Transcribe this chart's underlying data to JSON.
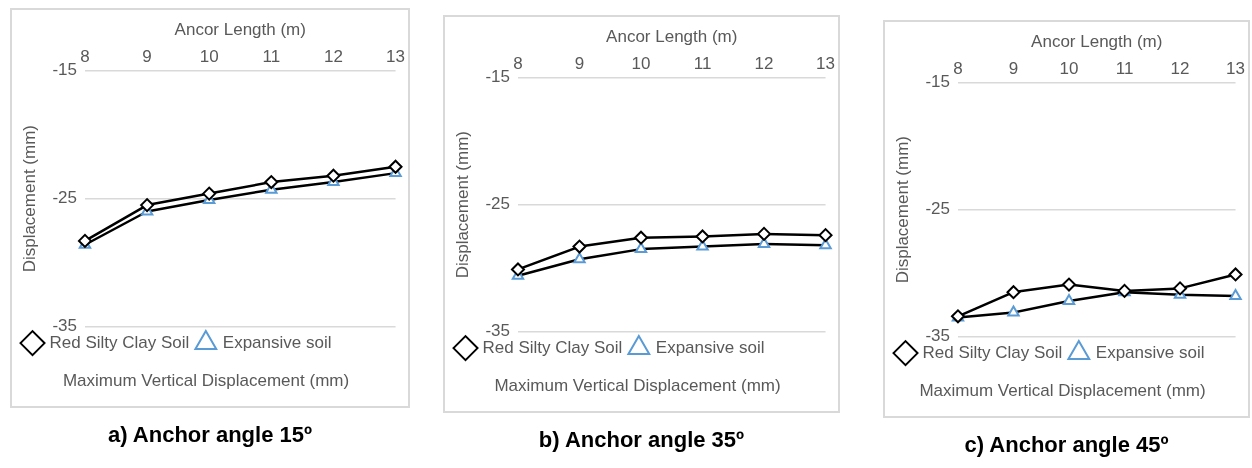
{
  "chart_data": [
    {
      "type": "line",
      "title": "Maximum Vertical Displacement (mm)",
      "xlabel": "Ancor Length (m)",
      "ylabel": "Displacement (mm)",
      "categories": [
        "8",
        "9",
        "10",
        "11",
        "12",
        "13"
      ],
      "ylim": [
        -35,
        -15
      ],
      "yticks": [
        -15,
        -25,
        -35
      ],
      "grid": "y",
      "legend": "bottom",
      "annotations": [
        "a) Anchor angle 15º"
      ],
      "series": [
        {
          "name": "Expansive soil",
          "color": "#5b9bd5",
          "marker": "triangle",
          "values": [
            -28.6,
            -26.0,
            -25.1,
            -24.3,
            -23.7,
            -23.0
          ]
        },
        {
          "name": "Red Silty Clay Soil",
          "color": "#000000",
          "marker": "diamond",
          "values": [
            -28.3,
            -25.5,
            -24.6,
            -23.7,
            -23.2,
            -22.5
          ]
        }
      ]
    },
    {
      "type": "line",
      "title": "Maximum Vertical Displacement (mm)",
      "xlabel": "Ancor Length (m)",
      "ylabel": "Displacement (mm)",
      "categories": [
        "8",
        "9",
        "10",
        "11",
        "12",
        "13"
      ],
      "ylim": [
        -35,
        -15
      ],
      "yticks": [
        -15,
        -25,
        -35
      ],
      "grid": "y",
      "legend": "bottom",
      "annotations": [
        "b) Anchor angle 35º"
      ],
      "series": [
        {
          "name": "Expansive soil",
          "color": "#5b9bd5",
          "marker": "triangle",
          "values": [
            -30.6,
            -29.3,
            -28.5,
            -28.3,
            -28.1,
            -28.2
          ]
        },
        {
          "name": "Red Silty Clay Soil",
          "color": "#000000",
          "marker": "diamond",
          "values": [
            -30.1,
            -28.3,
            -27.6,
            -27.5,
            -27.3,
            -27.4
          ]
        }
      ]
    },
    {
      "type": "line",
      "title": "Maximum Vertical Displacement (mm)",
      "xlabel": "Ancor Length (m)",
      "ylabel": "Displacement (mm)",
      "categories": [
        "8",
        "9",
        "10",
        "11",
        "12",
        "13"
      ],
      "ylim": [
        -35,
        -15
      ],
      "yticks": [
        -15,
        -25,
        -35
      ],
      "grid": "y",
      "legend": "bottom",
      "annotations": [
        "c) Anchor angle 45º"
      ],
      "series": [
        {
          "name": "Expansive soil",
          "color": "#5b9bd5",
          "marker": "triangle",
          "values": [
            -33.5,
            -33.1,
            -32.2,
            -31.5,
            -31.7,
            -31.8
          ]
        },
        {
          "name": "Red Silty Clay Soil",
          "color": "#000000",
          "marker": "diamond",
          "values": [
            -33.4,
            -31.5,
            -30.9,
            -31.4,
            -31.2,
            -30.1
          ]
        }
      ]
    }
  ]
}
